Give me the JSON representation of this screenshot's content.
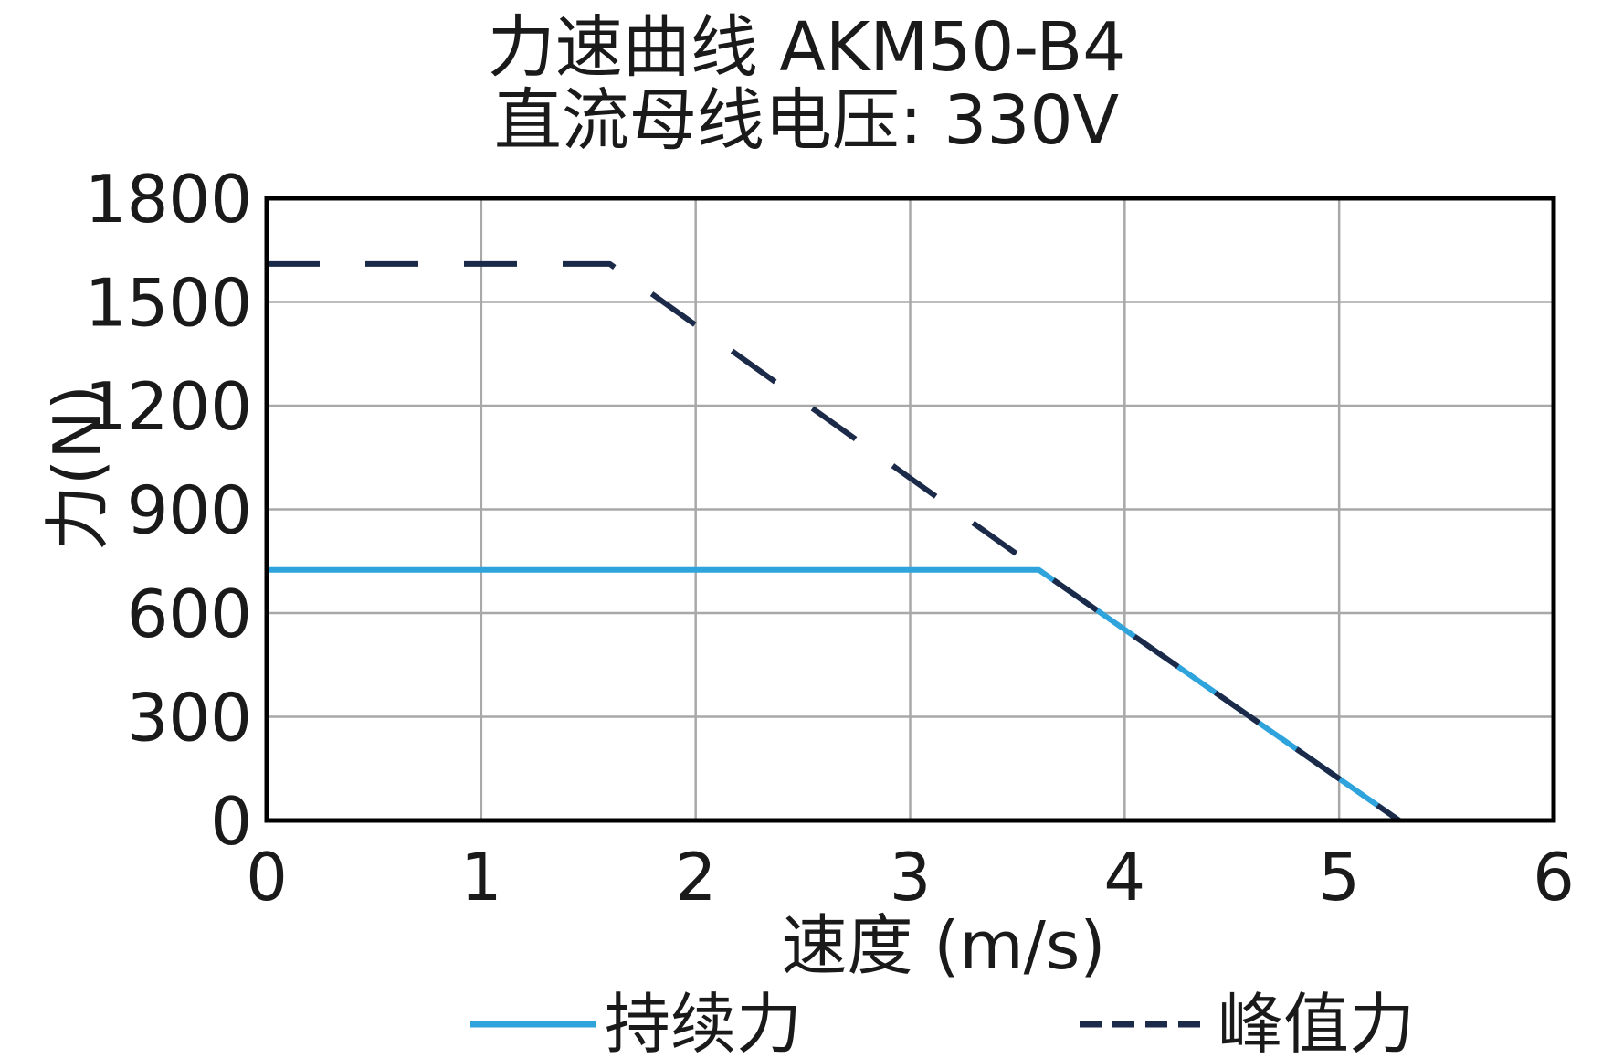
{
  "chart_data": {
    "type": "line",
    "title": "力速曲线 AKM50-B4",
    "subtitle": "直流母线电压: 330V",
    "xlabel": "速度 (m/s)",
    "ylabel": "力(N)",
    "xlim": [
      0,
      6
    ],
    "ylim": [
      0,
      1800
    ],
    "xticks": [
      "0",
      "1",
      "2",
      "3",
      "4",
      "5",
      "6"
    ],
    "yticks": [
      "0",
      "300",
      "600",
      "900",
      "1200",
      "1500",
      "1800"
    ],
    "grid": true,
    "legend_position": "bottom",
    "series": [
      {
        "name": "持续力",
        "style": "solid",
        "color": "#2ea3dc",
        "x": [
          0,
          3.6,
          5.28
        ],
        "y": [
          725,
          725,
          0
        ]
      },
      {
        "name": "峰值力",
        "style": "dashed",
        "color": "#1c2a4a",
        "x": [
          0,
          1.6,
          3.6,
          5.28
        ],
        "y": [
          1610,
          1610,
          725,
          0
        ]
      }
    ]
  }
}
